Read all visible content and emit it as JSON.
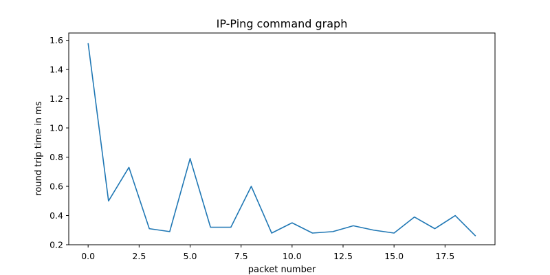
{
  "chart_data": {
    "type": "line",
    "title": "IP-Ping command graph",
    "xlabel": "packet number",
    "ylabel": "round trip time in ms",
    "xlim": [
      -0.95,
      19.95
    ],
    "ylim": [
      0.2,
      1.65
    ],
    "xticks": [
      0.0,
      2.5,
      5.0,
      7.5,
      10.0,
      12.5,
      15.0,
      17.5
    ],
    "xtick_labels": [
      "0.0",
      "2.5",
      "5.0",
      "7.5",
      "10.0",
      "12.5",
      "15.0",
      "17.5"
    ],
    "yticks": [
      0.2,
      0.4,
      0.6,
      0.8,
      1.0,
      1.2,
      1.4,
      1.6
    ],
    "ytick_labels": [
      "0.2",
      "0.4",
      "0.6",
      "0.8",
      "1.0",
      "1.2",
      "1.4",
      "1.6"
    ],
    "grid": false,
    "series": [
      {
        "color": "#1f77b4",
        "x": [
          0,
          1,
          2,
          3,
          4,
          5,
          6,
          7,
          8,
          9,
          10,
          11,
          12,
          13,
          14,
          15,
          16,
          17,
          18,
          19
        ],
        "values": [
          1.58,
          0.5,
          0.73,
          0.31,
          0.29,
          0.79,
          0.32,
          0.32,
          0.6,
          0.28,
          0.35,
          0.28,
          0.29,
          0.33,
          0.3,
          0.28,
          0.39,
          0.31,
          0.4,
          0.26
        ]
      }
    ]
  }
}
